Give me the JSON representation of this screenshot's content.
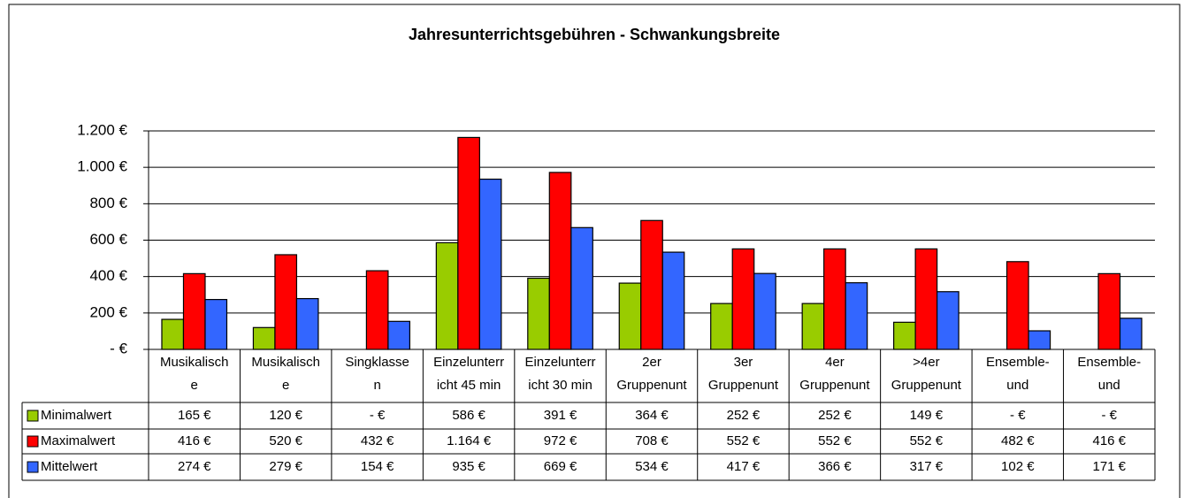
{
  "chart_data": {
    "type": "bar",
    "title": "Jahresunterrichtsgebühren - Schwankungsbreite",
    "categories": [
      [
        "Musikalisch",
        "e"
      ],
      [
        "Musikalisch",
        "e"
      ],
      [
        "Singklasse",
        "n"
      ],
      [
        "Einzelunterr",
        "icht 45 min"
      ],
      [
        "Einzelunterr",
        "icht 30 min"
      ],
      [
        "2er",
        "Gruppenunt"
      ],
      [
        "3er",
        "Gruppenunt"
      ],
      [
        "4er",
        "Gruppenunt"
      ],
      [
        ">4er",
        "Gruppenunt"
      ],
      [
        "Ensemble-",
        "und"
      ],
      [
        "Ensemble-",
        "und"
      ]
    ],
    "series": [
      {
        "name": "Minimalwert",
        "color": "#99cc00",
        "values": [
          165,
          120,
          0,
          586,
          391,
          364,
          252,
          252,
          149,
          0,
          0
        ],
        "value_labels": [
          "165 €",
          "120 €",
          "-  €",
          "586 €",
          "391 €",
          "364 €",
          "252 €",
          "252 €",
          "149 €",
          "-  €",
          "-  €"
        ]
      },
      {
        "name": "Maximalwert",
        "color": "#ff0000",
        "values": [
          416,
          520,
          432,
          1164,
          972,
          708,
          552,
          552,
          552,
          482,
          416
        ],
        "value_labels": [
          "416 €",
          "520 €",
          "432 €",
          "1.164 €",
          "972 €",
          "708 €",
          "552 €",
          "552 €",
          "552 €",
          "482 €",
          "416 €"
        ]
      },
      {
        "name": "Mittelwert",
        "color": "#3366ff",
        "values": [
          274,
          279,
          154,
          935,
          669,
          534,
          417,
          366,
          317,
          102,
          171
        ],
        "value_labels": [
          "274 €",
          "279 €",
          "154 €",
          "935 €",
          "669 €",
          "534 €",
          "417 €",
          "366 €",
          "317 €",
          "102 €",
          "171 €"
        ]
      }
    ],
    "ylim": [
      0,
      1200
    ],
    "yticks": [
      {
        "value": 0,
        "label": "- €"
      },
      {
        "value": 200,
        "label": "200 €"
      },
      {
        "value": 400,
        "label": "400 €"
      },
      {
        "value": 600,
        "label": "600 €"
      },
      {
        "value": 800,
        "label": "800 €"
      },
      {
        "value": 1000,
        "label": "1.000 €"
      },
      {
        "value": 1200,
        "label": "1.200 €"
      }
    ],
    "grid": true
  }
}
